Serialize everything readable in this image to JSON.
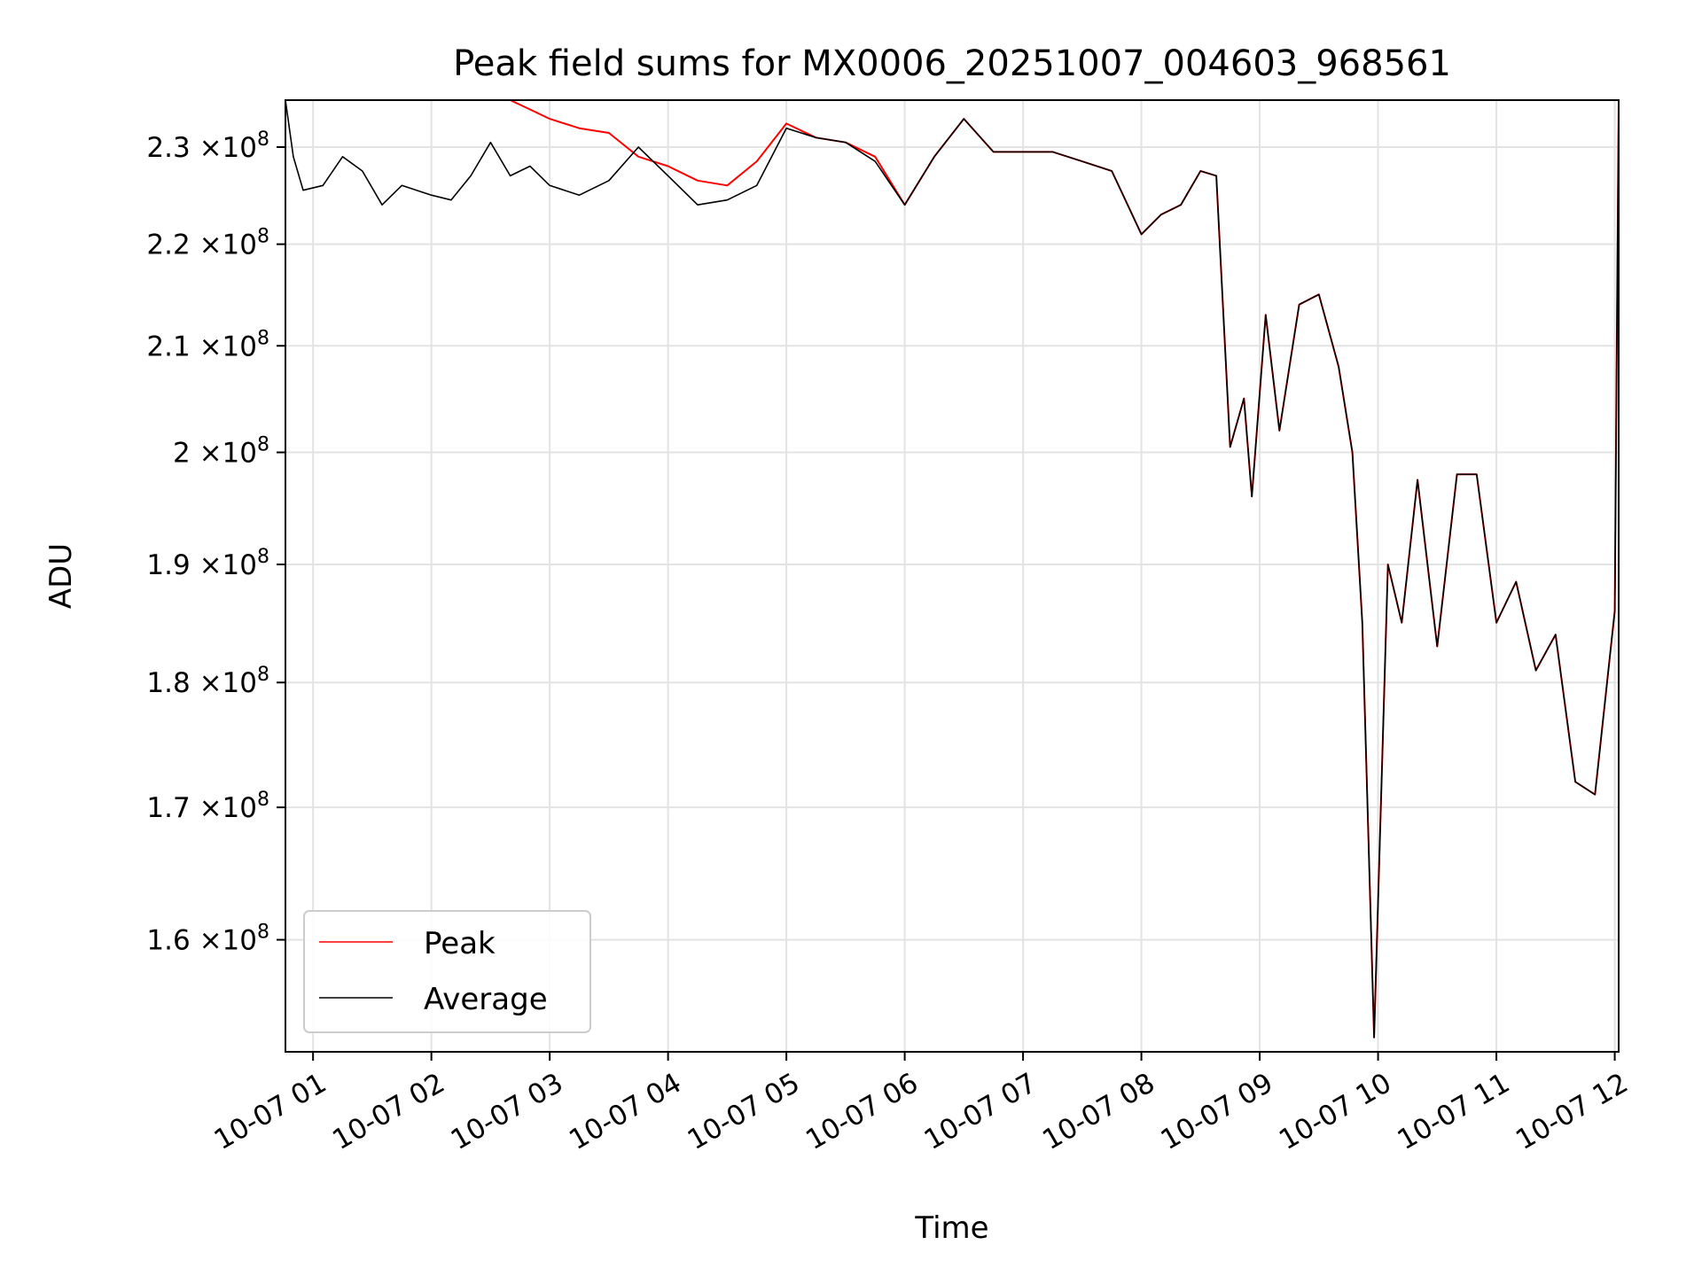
{
  "chart_data": {
    "type": "line",
    "title": "Peak field sums for MX0006_20251007_004603_968561",
    "xlabel": "Time",
    "ylabel": "ADU",
    "y_scale": "log",
    "ylim": [
      152000000,
      235000000
    ],
    "xlim": [
      "2025-10-07 00:46",
      "2025-10-07 12:02"
    ],
    "grid": true,
    "legend_position": "lower-left",
    "x_ticks": [
      {
        "t": "2025-10-07 01:00",
        "label": "10-07 01"
      },
      {
        "t": "2025-10-07 02:00",
        "label": "10-07 02"
      },
      {
        "t": "2025-10-07 03:00",
        "label": "10-07 03"
      },
      {
        "t": "2025-10-07 04:00",
        "label": "10-07 04"
      },
      {
        "t": "2025-10-07 05:00",
        "label": "10-07 05"
      },
      {
        "t": "2025-10-07 06:00",
        "label": "10-07 06"
      },
      {
        "t": "2025-10-07 07:00",
        "label": "10-07 07"
      },
      {
        "t": "2025-10-07 08:00",
        "label": "10-07 08"
      },
      {
        "t": "2025-10-07 09:00",
        "label": "10-07 09"
      },
      {
        "t": "2025-10-07 10:00",
        "label": "10-07 10"
      },
      {
        "t": "2025-10-07 11:00",
        "label": "10-07 11"
      },
      {
        "t": "2025-10-07 12:00",
        "label": "10-07 12"
      }
    ],
    "y_ticks": [
      {
        "value": 160000000,
        "mant": "1.6",
        "exp": "8"
      },
      {
        "value": 170000000,
        "mant": "1.7",
        "exp": "8"
      },
      {
        "value": 180000000,
        "mant": "1.8",
        "exp": "8"
      },
      {
        "value": 190000000,
        "mant": "1.9",
        "exp": "8"
      },
      {
        "value": 200000000,
        "mant": "2",
        "exp": "8"
      },
      {
        "value": 210000000,
        "mant": "2.1",
        "exp": "8"
      },
      {
        "value": 220000000,
        "mant": "2.2",
        "exp": "8"
      },
      {
        "value": 230000000,
        "mant": "2.3",
        "exp": "8"
      }
    ],
    "y_tick_separator": "×10",
    "series": [
      {
        "name": "Peak",
        "color": "#ff0000",
        "x": [
          "2025-10-07 00:46",
          "2025-10-07 00:55",
          "2025-10-07 01:05",
          "2025-10-07 01:15",
          "2025-10-07 01:25",
          "2025-10-07 01:35",
          "2025-10-07 01:45",
          "2025-10-07 02:00",
          "2025-10-07 02:10",
          "2025-10-07 02:20",
          "2025-10-07 02:30",
          "2025-10-07 02:40",
          "2025-10-07 02:50",
          "2025-10-07 03:00",
          "2025-10-07 03:15",
          "2025-10-07 03:30",
          "2025-10-07 03:45",
          "2025-10-07 04:00",
          "2025-10-07 04:15",
          "2025-10-07 04:30",
          "2025-10-07 04:45",
          "2025-10-07 05:00",
          "2025-10-07 05:15",
          "2025-10-07 05:30",
          "2025-10-07 05:45",
          "2025-10-07 06:00",
          "2025-10-07 06:15",
          "2025-10-07 06:30",
          "2025-10-07 06:45",
          "2025-10-07 07:00",
          "2025-10-07 07:15",
          "2025-10-07 07:30",
          "2025-10-07 07:45",
          "2025-10-07 08:00",
          "2025-10-07 08:10",
          "2025-10-07 08:20",
          "2025-10-07 08:30",
          "2025-10-07 08:38",
          "2025-10-07 08:45",
          "2025-10-07 08:52",
          "2025-10-07 08:56",
          "2025-10-07 09:03",
          "2025-10-07 09:10",
          "2025-10-07 09:20",
          "2025-10-07 09:30",
          "2025-10-07 09:40",
          "2025-10-07 09:47",
          "2025-10-07 09:52",
          "2025-10-07 09:58",
          "2025-10-07 10:05",
          "2025-10-07 10:12",
          "2025-10-07 10:20",
          "2025-10-07 10:30",
          "2025-10-07 10:40",
          "2025-10-07 10:50",
          "2025-10-07 11:00",
          "2025-10-07 11:10",
          "2025-10-07 11:20",
          "2025-10-07 11:30",
          "2025-10-07 11:40",
          "2025-10-07 11:50",
          "2025-10-07 12:00",
          "2025-10-07 12:02"
        ],
        "values": [
          235000000,
          235000000,
          235000000,
          235000000,
          235000000,
          235000000,
          235000000,
          235000000,
          235000000,
          235000000,
          235000000,
          235000000,
          234000000,
          233000000,
          232000000,
          231500000,
          229000000,
          228000000,
          226500000,
          226000000,
          228500000,
          232500000,
          231000000,
          230500000,
          229000000,
          224000000,
          229000000,
          233000000,
          229500000,
          229500000,
          229500000,
          228500000,
          227500000,
          221000000,
          223000000,
          224000000,
          227500000,
          227000000,
          200500000,
          205000000,
          196000000,
          213000000,
          202000000,
          214000000,
          215000000,
          208000000,
          200000000,
          185000000,
          153000000,
          190000000,
          185000000,
          197500000,
          183000000,
          198000000,
          198000000,
          185000000,
          188500000,
          181000000,
          184000000,
          172000000,
          171000000,
          186000000,
          235000000
        ]
      },
      {
        "name": "Average",
        "color": "#000000",
        "x": [
          "2025-10-07 00:46",
          "2025-10-07 00:50",
          "2025-10-07 00:55",
          "2025-10-07 01:05",
          "2025-10-07 01:15",
          "2025-10-07 01:25",
          "2025-10-07 01:35",
          "2025-10-07 01:45",
          "2025-10-07 02:00",
          "2025-10-07 02:10",
          "2025-10-07 02:20",
          "2025-10-07 02:30",
          "2025-10-07 02:40",
          "2025-10-07 02:50",
          "2025-10-07 03:00",
          "2025-10-07 03:15",
          "2025-10-07 03:30",
          "2025-10-07 03:45",
          "2025-10-07 04:00",
          "2025-10-07 04:15",
          "2025-10-07 04:30",
          "2025-10-07 04:45",
          "2025-10-07 05:00",
          "2025-10-07 05:15",
          "2025-10-07 05:30",
          "2025-10-07 05:45",
          "2025-10-07 06:00",
          "2025-10-07 06:15",
          "2025-10-07 06:30",
          "2025-10-07 06:45",
          "2025-10-07 07:00",
          "2025-10-07 07:15",
          "2025-10-07 07:30",
          "2025-10-07 07:45",
          "2025-10-07 08:00",
          "2025-10-07 08:10",
          "2025-10-07 08:20",
          "2025-10-07 08:30",
          "2025-10-07 08:38",
          "2025-10-07 08:45",
          "2025-10-07 08:52",
          "2025-10-07 08:56",
          "2025-10-07 09:03",
          "2025-10-07 09:10",
          "2025-10-07 09:20",
          "2025-10-07 09:30",
          "2025-10-07 09:40",
          "2025-10-07 09:47",
          "2025-10-07 09:52",
          "2025-10-07 09:58",
          "2025-10-07 10:05",
          "2025-10-07 10:12",
          "2025-10-07 10:20",
          "2025-10-07 10:30",
          "2025-10-07 10:40",
          "2025-10-07 10:50",
          "2025-10-07 11:00",
          "2025-10-07 11:10",
          "2025-10-07 11:20",
          "2025-10-07 11:30",
          "2025-10-07 11:40",
          "2025-10-07 11:50",
          "2025-10-07 12:00",
          "2025-10-07 12:02"
        ],
        "values": [
          235000000,
          229000000,
          225500000,
          226000000,
          229000000,
          227500000,
          224000000,
          226000000,
          225000000,
          224500000,
          227000000,
          230500000,
          227000000,
          228000000,
          226000000,
          225000000,
          226500000,
          230000000,
          227000000,
          224000000,
          224500000,
          226000000,
          232000000,
          231000000,
          230500000,
          228500000,
          224000000,
          229000000,
          233000000,
          229500000,
          229500000,
          229500000,
          228500000,
          227500000,
          221000000,
          223000000,
          224000000,
          227500000,
          227000000,
          200500000,
          205000000,
          196000000,
          213000000,
          202000000,
          214000000,
          215000000,
          208000000,
          200000000,
          185000000,
          153000000,
          190000000,
          185000000,
          197500000,
          183000000,
          198000000,
          198000000,
          185000000,
          188500000,
          181000000,
          184000000,
          172000000,
          171000000,
          186000000,
          235000000
        ]
      }
    ]
  }
}
